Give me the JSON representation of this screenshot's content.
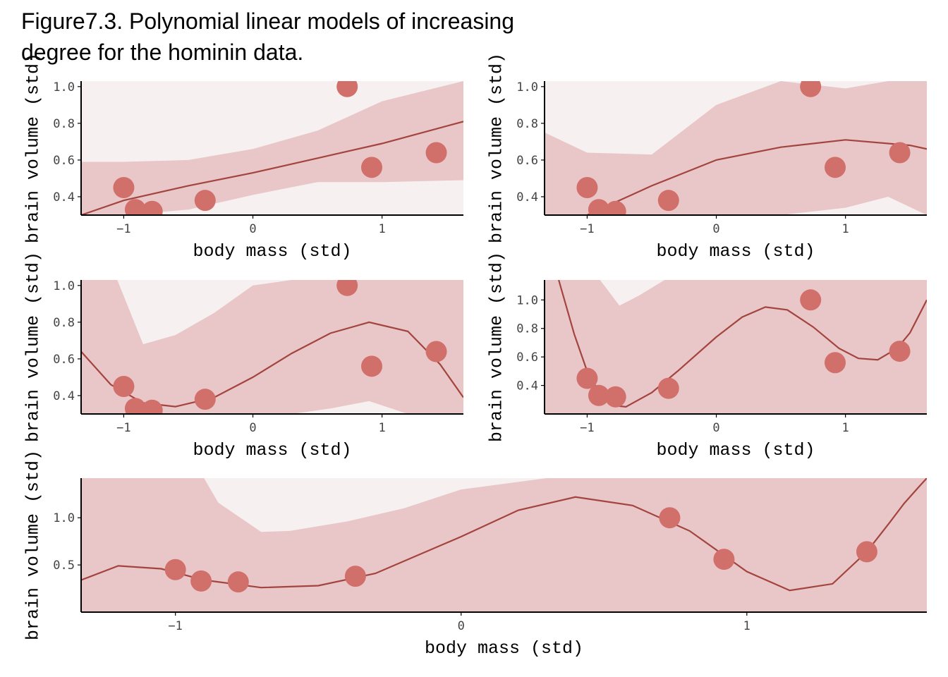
{
  "title": "Figure7.3. Polynomial linear models of increasing\ndegree for the hominin data.",
  "colors": {
    "point": "#d1706b",
    "line": "#a3443f",
    "band_outer": "#f7f0f0",
    "band_inner": "#e9c6c7",
    "axis": "#000000"
  },
  "chart_data": [
    {
      "type": "scatter",
      "model_degree": 1,
      "xlabel": "body mass (std)",
      "ylabel": "brain volume (std)",
      "xlim": [
        -1.33,
        1.63
      ],
      "ylim": [
        0.3,
        1.03
      ],
      "xticks": [
        -1,
        0,
        1
      ],
      "yticks": [
        0.4,
        0.6,
        0.8,
        1.0
      ],
      "ytick_labels": [
        "0.4",
        "0.6",
        "0.8",
        "1.0"
      ],
      "points": {
        "x": [
          -1.0,
          -0.91,
          -0.78,
          -0.37,
          0.73,
          0.92,
          1.42
        ],
        "y": [
          0.45,
          0.33,
          0.32,
          0.38,
          1.0,
          0.56,
          0.64
        ]
      },
      "fit": {
        "x": [
          -1.33,
          -1.0,
          -0.5,
          0.0,
          0.5,
          1.0,
          1.63
        ],
        "y": [
          0.3,
          0.38,
          0.46,
          0.53,
          0.61,
          0.69,
          0.81
        ]
      },
      "interval_89": {
        "x": [
          -1.33,
          -1.0,
          -0.5,
          0.0,
          0.5,
          1.0,
          1.63
        ],
        "lower": [
          0.3,
          0.3,
          0.33,
          0.41,
          0.48,
          0.48,
          0.49
        ],
        "upper": [
          0.59,
          0.59,
          0.6,
          0.66,
          0.76,
          0.92,
          1.03
        ]
      },
      "interval_outer": {
        "x": [
          -1.33,
          -1.0,
          -0.5,
          0.0,
          0.5,
          1.0,
          1.63
        ],
        "lower": [
          0.3,
          0.3,
          0.3,
          0.3,
          0.3,
          0.3,
          0.3
        ],
        "upper": [
          1.03,
          1.03,
          1.03,
          1.03,
          1.03,
          1.03,
          1.03
        ]
      }
    },
    {
      "type": "scatter",
      "model_degree": 2,
      "xlabel": "body mass (std)",
      "ylabel": "brain volume (std)",
      "xlim": [
        -1.33,
        1.63
      ],
      "ylim": [
        0.3,
        1.03
      ],
      "xticks": [
        -1,
        0,
        1
      ],
      "yticks": [
        0.4,
        0.6,
        0.8,
        1.0
      ],
      "ytick_labels": [
        "0.4",
        "0.6",
        "0.8",
        "1.0"
      ],
      "points": {
        "x": [
          -1.0,
          -0.91,
          -0.78,
          -0.37,
          0.73,
          0.92,
          1.42
        ],
        "y": [
          0.45,
          0.33,
          0.32,
          0.38,
          1.0,
          0.56,
          0.64
        ]
      },
      "fit": {
        "x": [
          -1.33,
          -1.0,
          -0.5,
          0.0,
          0.5,
          1.0,
          1.5,
          1.63
        ],
        "y": [
          0.2,
          0.3,
          0.46,
          0.6,
          0.67,
          0.71,
          0.68,
          0.66
        ]
      },
      "interval_89": {
        "x": [
          -1.33,
          -1.0,
          -0.5,
          0.0,
          0.5,
          1.0,
          1.33,
          1.63
        ],
        "lower": [
          0.3,
          0.3,
          0.3,
          0.3,
          0.3,
          0.34,
          0.4,
          0.3
        ],
        "upper": [
          0.75,
          0.64,
          0.63,
          0.9,
          1.03,
          0.99,
          1.03,
          1.03
        ]
      },
      "interval_outer": {
        "x": [
          -1.33,
          -1.0,
          -0.5,
          0.0,
          0.5,
          1.0,
          1.63
        ],
        "lower": [
          0.3,
          0.3,
          0.3,
          0.3,
          0.3,
          0.3,
          0.3
        ],
        "upper": [
          1.03,
          1.03,
          1.03,
          1.03,
          1.03,
          1.03,
          1.03
        ]
      }
    },
    {
      "type": "scatter",
      "model_degree": 3,
      "xlabel": "body mass (std)",
      "ylabel": "brain volume (std)",
      "xlim": [
        -1.33,
        1.63
      ],
      "ylim": [
        0.3,
        1.03
      ],
      "xticks": [
        -1,
        0,
        1
      ],
      "yticks": [
        0.4,
        0.6,
        0.8,
        1.0
      ],
      "ytick_labels": [
        "0.4",
        "0.6",
        "0.8",
        "1.0"
      ],
      "points": {
        "x": [
          -1.0,
          -0.91,
          -0.78,
          -0.37,
          0.73,
          0.92,
          1.42
        ],
        "y": [
          0.45,
          0.33,
          0.32,
          0.38,
          1.0,
          0.56,
          0.64
        ]
      },
      "fit": {
        "x": [
          -1.33,
          -1.1,
          -0.85,
          -0.6,
          -0.3,
          0.0,
          0.3,
          0.6,
          0.9,
          1.2,
          1.45,
          1.63
        ],
        "y": [
          0.64,
          0.46,
          0.36,
          0.34,
          0.39,
          0.5,
          0.63,
          0.74,
          0.8,
          0.75,
          0.57,
          0.39
        ]
      },
      "interval_89": {
        "x": [
          -1.33,
          -1.2,
          -1.05,
          -0.85,
          -0.6,
          -0.3,
          0.0,
          0.3,
          0.6,
          0.9,
          1.2,
          1.45,
          1.63
        ],
        "lower": [
          0.3,
          0.3,
          0.3,
          0.3,
          0.3,
          0.3,
          0.3,
          0.3,
          0.33,
          0.37,
          0.3,
          0.3,
          0.3
        ],
        "upper": [
          1.03,
          1.03,
          1.03,
          0.68,
          0.73,
          0.85,
          1.0,
          1.03,
          1.03,
          1.03,
          1.03,
          1.03,
          1.03
        ]
      },
      "interval_outer": {
        "x": [
          -1.33,
          -1.0,
          -0.5,
          0.0,
          0.5,
          1.0,
          1.63
        ],
        "lower": [
          0.3,
          0.3,
          0.3,
          0.3,
          0.3,
          0.3,
          0.3
        ],
        "upper": [
          1.03,
          1.03,
          1.03,
          1.03,
          1.03,
          1.03,
          1.03
        ]
      }
    },
    {
      "type": "scatter",
      "model_degree": 4,
      "xlabel": "body mass (std)",
      "ylabel": "brain volume (std)",
      "xlim": [
        -1.33,
        1.63
      ],
      "ylim": [
        0.2,
        1.14
      ],
      "xticks": [
        -1,
        0,
        1
      ],
      "yticks": [
        0.4,
        0.6,
        0.8,
        1.0
      ],
      "ytick_labels": [
        "0.4",
        "0.6",
        "0.8",
        "1.0"
      ],
      "points": {
        "x": [
          -1.0,
          -0.91,
          -0.78,
          -0.37,
          0.73,
          0.92,
          1.42
        ],
        "y": [
          0.45,
          0.33,
          0.32,
          0.38,
          1.0,
          0.56,
          0.64
        ]
      },
      "fit": {
        "x": [
          -1.22,
          -1.1,
          -1.0,
          -0.9,
          -0.8,
          -0.7,
          -0.5,
          -0.3,
          0.0,
          0.2,
          0.38,
          0.55,
          0.75,
          0.95,
          1.1,
          1.25,
          1.4,
          1.5,
          1.63
        ],
        "y": [
          1.14,
          0.76,
          0.5,
          0.34,
          0.26,
          0.25,
          0.35,
          0.5,
          0.74,
          0.88,
          0.95,
          0.93,
          0.81,
          0.66,
          0.59,
          0.58,
          0.66,
          0.77,
          1.0
        ]
      },
      "interval_89": {
        "x": [
          -1.33,
          -1.1,
          -0.9,
          -0.75,
          -0.6,
          -0.4,
          -0.2,
          0.0,
          0.3,
          0.6,
          0.9,
          1.2,
          1.63
        ],
        "lower": [
          0.2,
          0.2,
          0.2,
          0.2,
          0.2,
          0.2,
          0.2,
          0.2,
          0.2,
          0.2,
          0.2,
          0.2,
          0.2
        ],
        "upper": [
          1.14,
          1.14,
          1.14,
          0.96,
          1.03,
          1.14,
          1.14,
          1.14,
          1.14,
          1.14,
          1.14,
          1.14,
          1.14
        ]
      },
      "interval_outer": {
        "x": [
          -1.33,
          -1.0,
          -0.5,
          0.0,
          0.5,
          1.0,
          1.63
        ],
        "lower": [
          0.2,
          0.2,
          0.2,
          0.2,
          0.2,
          0.2,
          0.2
        ],
        "upper": [
          1.14,
          1.14,
          1.14,
          1.14,
          1.14,
          1.14,
          1.14
        ]
      }
    },
    {
      "type": "scatter",
      "model_degree": 5,
      "xlabel": "body mass (std)",
      "ylabel": "brain volume (std)",
      "xlim": [
        -1.33,
        1.63
      ],
      "ylim": [
        0.0,
        1.42
      ],
      "xticks": [
        -1,
        0,
        1
      ],
      "yticks": [
        0.5,
        1.0
      ],
      "ytick_labels": [
        "0.5",
        "1.0"
      ],
      "points": {
        "x": [
          -1.0,
          -0.91,
          -0.78,
          -0.37,
          0.73,
          0.92,
          1.42
        ],
        "y": [
          0.45,
          0.33,
          0.32,
          0.38,
          1.0,
          0.56,
          0.64
        ]
      },
      "fit": {
        "x": [
          -1.33,
          -1.2,
          -1.05,
          -0.9,
          -0.7,
          -0.5,
          -0.3,
          0.0,
          0.2,
          0.4,
          0.6,
          0.8,
          1.0,
          1.15,
          1.3,
          1.42,
          1.5,
          1.55,
          1.6,
          1.63
        ],
        "y": [
          0.34,
          0.49,
          0.46,
          0.34,
          0.26,
          0.28,
          0.41,
          0.8,
          1.08,
          1.22,
          1.13,
          0.86,
          0.43,
          0.23,
          0.3,
          0.64,
          0.95,
          1.15,
          1.32,
          1.42
        ]
      },
      "interval_89": {
        "x": [
          -1.33,
          -0.9,
          -0.85,
          -0.7,
          -0.6,
          -0.4,
          -0.2,
          0.0,
          0.3,
          0.6,
          0.8,
          1.0,
          1.2,
          1.4,
          1.63
        ],
        "lower": [
          0.0,
          0.0,
          0.0,
          0.0,
          0.0,
          0.0,
          0.0,
          0.0,
          0.0,
          0.0,
          0.0,
          0.0,
          0.0,
          0.0,
          0.0
        ],
        "upper": [
          1.42,
          1.42,
          1.16,
          0.85,
          0.86,
          0.96,
          1.1,
          1.3,
          1.42,
          1.42,
          1.42,
          1.42,
          1.42,
          1.42,
          1.42
        ]
      },
      "interval_outer": {
        "x": [
          -1.33,
          -1.0,
          -0.5,
          0.0,
          0.5,
          1.0,
          1.63
        ],
        "lower": [
          0.0,
          0.0,
          0.0,
          0.0,
          0.0,
          0.0,
          0.0
        ],
        "upper": [
          1.42,
          1.42,
          1.42,
          1.42,
          1.42,
          1.42,
          1.42
        ]
      }
    }
  ]
}
